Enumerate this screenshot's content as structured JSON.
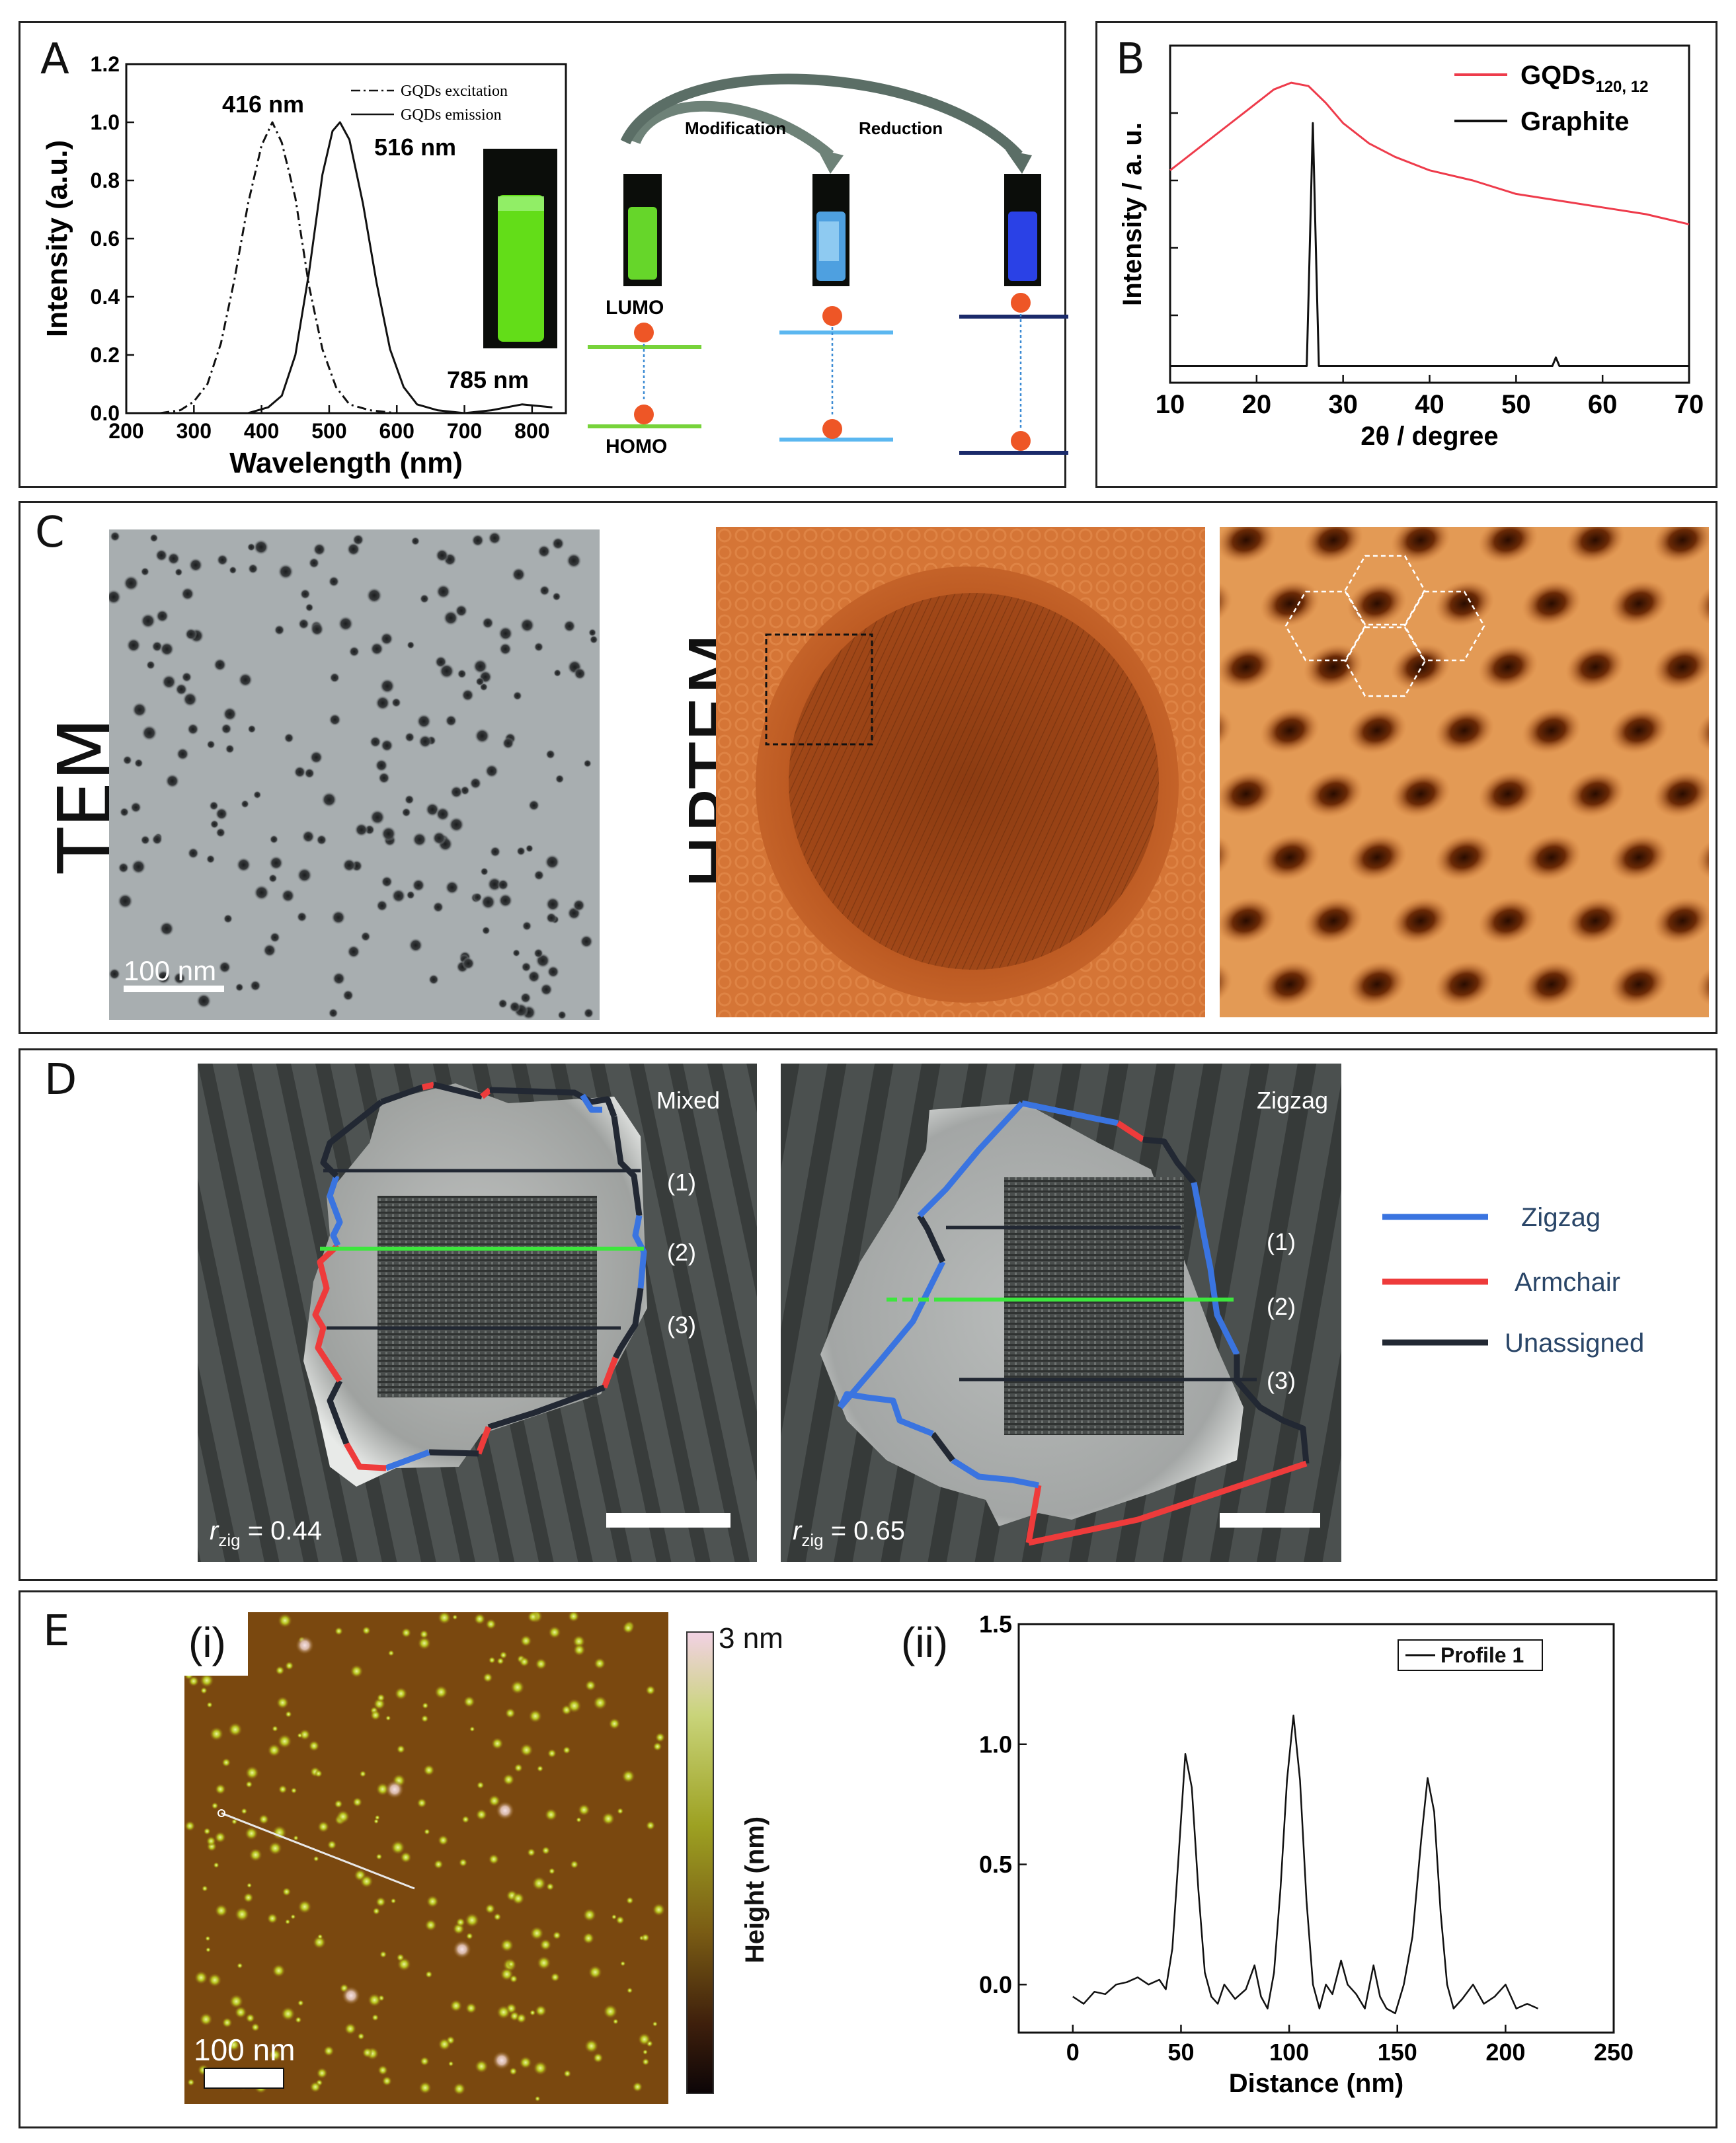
{
  "panels": {
    "A": {
      "label": "A",
      "legend": [
        "GQDs excitation",
        "GQDs emission"
      ],
      "peak_labels": [
        "416 nm",
        "516 nm",
        "785 nm"
      ],
      "diagram": {
        "arrow_labels": [
          "Modification",
          "Reduction"
        ],
        "levels": [
          "LUMO",
          "HOMO"
        ]
      }
    },
    "B": {
      "label": "B",
      "legend_main": "GQDs",
      "legend_sub": "120, 12",
      "legend_graphite": "Graphite"
    },
    "C": {
      "label": "C",
      "tem_label": "TEM",
      "hrtem_label": "HRTEM",
      "scale_text": "100 nm"
    },
    "D": {
      "label": "D",
      "images": [
        {
          "title": "Mixed",
          "rzig_symbol": "r",
          "rzig_sub": "zig",
          "rzig_value": " = 0.44",
          "marks": [
            "(1)",
            "(2)",
            "(3)"
          ]
        },
        {
          "title": "Zigzag",
          "rzig_symbol": "r",
          "rzig_sub": "zig",
          "rzig_value": " = 0.65",
          "marks": [
            "(1)",
            "(2)",
            "(3)"
          ]
        }
      ],
      "legend": [
        {
          "label": "Zigzag",
          "color": "#3a74e0"
        },
        {
          "label": "Armchair",
          "color": "#ee3b3b"
        },
        {
          "label": "Unassigned",
          "color": "#222833"
        }
      ]
    },
    "E": {
      "label": "E",
      "sub_i": "(i)",
      "sub_ii": "(ii)",
      "colorbar_top": "3 nm",
      "colorbar_label": "Height (nm)",
      "scale_text": "100 nm",
      "legend": "Profile 1"
    }
  },
  "chart_data": [
    {
      "id": "A",
      "type": "line",
      "xlabel": "Wavelength (nm)",
      "ylabel": "Intensity (a.u.)",
      "xlim": [
        200,
        850
      ],
      "ylim": [
        0,
        1.2
      ],
      "xticks": [
        200,
        300,
        400,
        500,
        600,
        700,
        800
      ],
      "yticks": [
        0.0,
        0.2,
        0.4,
        0.6,
        0.8,
        1.0,
        1.2
      ],
      "series": [
        {
          "name": "GQDs excitation",
          "style": "dashdot",
          "x": [
            250,
            280,
            300,
            320,
            340,
            360,
            380,
            400,
            416,
            430,
            450,
            470,
            490,
            510,
            530,
            560,
            600
          ],
          "y": [
            0.0,
            0.01,
            0.04,
            0.1,
            0.24,
            0.46,
            0.72,
            0.92,
            1.0,
            0.93,
            0.74,
            0.44,
            0.22,
            0.09,
            0.03,
            0.01,
            0.0
          ]
        },
        {
          "name": "GQDs emission",
          "style": "solid",
          "x": [
            380,
            410,
            430,
            450,
            470,
            490,
            505,
            516,
            530,
            550,
            570,
            590,
            610,
            630,
            660,
            700,
            740,
            785,
            830
          ],
          "y": [
            0.0,
            0.02,
            0.06,
            0.2,
            0.48,
            0.82,
            0.97,
            1.0,
            0.94,
            0.72,
            0.45,
            0.22,
            0.09,
            0.03,
            0.01,
            0.0,
            0.01,
            0.03,
            0.02
          ]
        }
      ]
    },
    {
      "id": "B",
      "type": "line",
      "xlabel": "2θ / degree",
      "ylabel": "Intensity / a. u.",
      "xlim": [
        10,
        70
      ],
      "xticks": [
        10,
        20,
        30,
        40,
        50,
        60,
        70
      ],
      "series": [
        {
          "name": "GQDs120, 12",
          "color": "#ee3b4b",
          "x": [
            10,
            13,
            16,
            19,
            22,
            24,
            26,
            28,
            30,
            33,
            36,
            40,
            45,
            50,
            55,
            60,
            65,
            70
          ],
          "y": [
            0.58,
            0.64,
            0.7,
            0.76,
            0.82,
            0.84,
            0.83,
            0.78,
            0.72,
            0.66,
            0.62,
            0.58,
            0.55,
            0.51,
            0.49,
            0.47,
            0.45,
            0.42
          ]
        },
        {
          "name": "Graphite",
          "color": "#111111",
          "x": [
            10,
            25.8,
            26.1,
            26.5,
            26.9,
            27.2,
            44.5,
            54.2,
            54.6,
            55.0,
            70
          ],
          "y": [
            0.0,
            0.0,
            0.3,
            0.72,
            0.3,
            0.0,
            0.0,
            0.0,
            0.025,
            0.0,
            0.0
          ]
        }
      ]
    },
    {
      "id": "E-ii",
      "type": "line",
      "xlabel": "Distance (nm)",
      "ylabel": "",
      "xlim": [
        -25,
        250
      ],
      "ylim": [
        -0.2,
        1.5
      ],
      "xticks": [
        0,
        50,
        100,
        150,
        200,
        250
      ],
      "yticks": [
        0.0,
        0.5,
        1.0,
        1.5
      ],
      "series": [
        {
          "name": "Profile 1",
          "x": [
            0,
            5,
            10,
            15,
            20,
            25,
            30,
            35,
            40,
            43,
            46,
            49,
            52,
            55,
            58,
            61,
            64,
            67,
            70,
            75,
            80,
            84,
            87,
            90,
            93,
            96,
            99,
            102,
            105,
            108,
            111,
            114,
            117,
            120,
            124,
            127,
            131,
            135,
            139,
            142,
            145,
            149,
            153,
            157,
            161,
            164,
            167,
            170,
            173,
            176,
            180,
            185,
            190,
            195,
            200,
            205,
            210,
            215
          ],
          "y": [
            -0.05,
            -0.08,
            -0.03,
            -0.04,
            0.0,
            0.01,
            0.03,
            0.0,
            0.02,
            -0.02,
            0.15,
            0.55,
            0.96,
            0.82,
            0.4,
            0.05,
            -0.05,
            -0.08,
            0.0,
            -0.06,
            -0.02,
            0.08,
            -0.05,
            -0.1,
            0.05,
            0.4,
            0.85,
            1.12,
            0.85,
            0.35,
            0.0,
            -0.1,
            0.0,
            -0.04,
            0.1,
            0.0,
            -0.04,
            -0.1,
            0.08,
            -0.05,
            -0.1,
            -0.12,
            0.0,
            0.2,
            0.6,
            0.86,
            0.72,
            0.3,
            0.0,
            -0.1,
            -0.06,
            0.0,
            -0.08,
            -0.05,
            0.0,
            -0.1,
            -0.08,
            -0.1
          ]
        }
      ]
    }
  ]
}
